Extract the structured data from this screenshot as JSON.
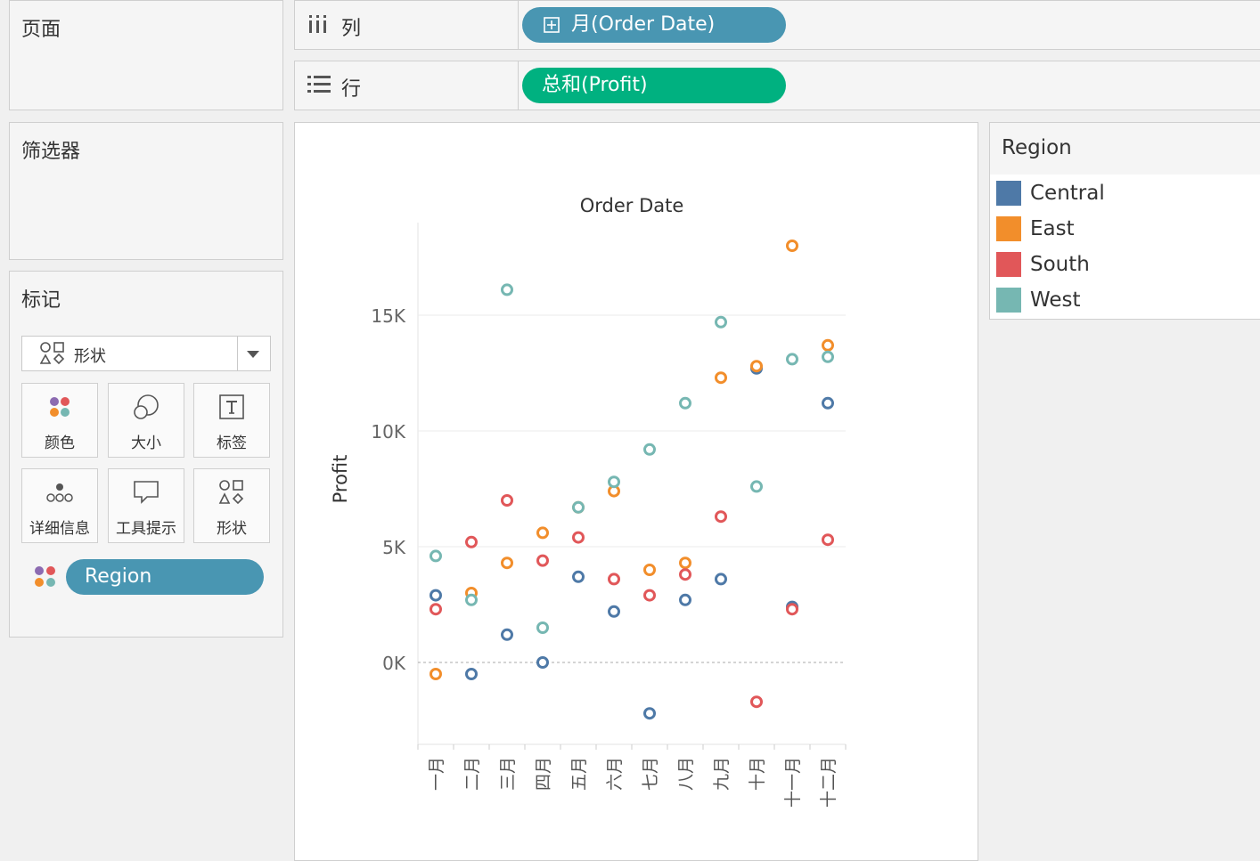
{
  "cards": {
    "pages_title": "页面",
    "filters_title": "筛选器",
    "marks_title": "标记"
  },
  "shelves": {
    "columns": {
      "label": "列",
      "icon": "columns-icon",
      "pill": "月(Order Date)",
      "pill_icon": "plus-square-icon",
      "pill_color": "#4996b2"
    },
    "rows": {
      "label": "行",
      "icon": "rows-list-icon",
      "pill": "总和(Profit)",
      "pill_color": "#00b180"
    }
  },
  "marks": {
    "mark_type": "形状",
    "buttons": [
      {
        "label": "颜色",
        "icon": "color-dots-icon"
      },
      {
        "label": "大小",
        "icon": "size-icon"
      },
      {
        "label": "标签",
        "icon": "label-t-icon"
      },
      {
        "label": "详细信息",
        "icon": "detail-dots-icon"
      },
      {
        "label": "工具提示",
        "icon": "tooltip-bubble-icon"
      },
      {
        "label": "形状",
        "icon": "shape-icon"
      }
    ],
    "color_field": {
      "label": "Region",
      "color": "#4996b2",
      "icon": "color-dots-icon"
    }
  },
  "legend": {
    "title": "Region",
    "items": [
      {
        "name": "Central",
        "color": "#4e79a7"
      },
      {
        "name": "East",
        "color": "#f28e2b"
      },
      {
        "name": "South",
        "color": "#e15759"
      },
      {
        "name": "West",
        "color": "#76b7b2"
      }
    ]
  },
  "chart_data": {
    "type": "scatter",
    "title": "Order Date",
    "xlabel": "",
    "ylabel": "Profit",
    "categories": [
      "一月",
      "二月",
      "三月",
      "四月",
      "五月",
      "六月",
      "七月",
      "八月",
      "九月",
      "十月",
      "十一月",
      "十二月"
    ],
    "y_ticks": [
      "0K",
      "5K",
      "10K",
      "15K"
    ],
    "ylim": [
      -3500,
      19500
    ],
    "grid": true,
    "mark": "open circle",
    "series": [
      {
        "name": "Central",
        "color": "#4e79a7",
        "values": [
          2900,
          -500,
          1200,
          0,
          3700,
          2200,
          -2200,
          2700,
          3600,
          12700,
          2400,
          11200
        ]
      },
      {
        "name": "East",
        "color": "#f28e2b",
        "values": [
          -500,
          3000,
          4300,
          5600,
          6700,
          7400,
          4000,
          4300,
          12300,
          12800,
          18000,
          13700
        ]
      },
      {
        "name": "South",
        "color": "#e15759",
        "values": [
          2300,
          5200,
          7000,
          4400,
          5400,
          3600,
          2900,
          3800,
          6300,
          -1700,
          2300,
          5300
        ]
      },
      {
        "name": "West",
        "color": "#76b7b2",
        "values": [
          4600,
          2700,
          16100,
          1500,
          6700,
          7800,
          9200,
          11200,
          14700,
          7600,
          13100,
          13200
        ]
      }
    ]
  }
}
